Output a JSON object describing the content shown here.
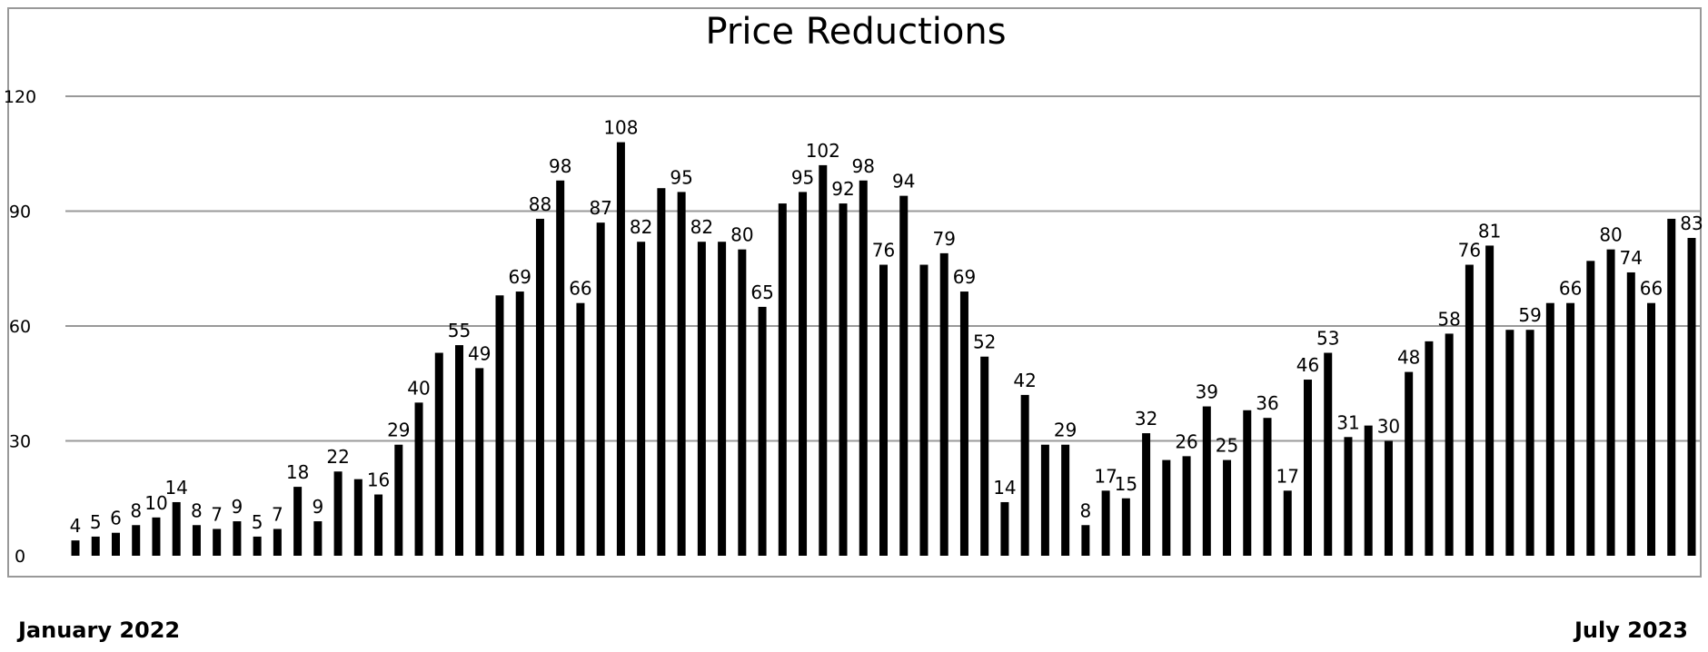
{
  "chart_data": {
    "type": "bar",
    "title": "Price Reductions",
    "xlabel": "",
    "ylabel": "",
    "ylim": [
      0,
      120
    ],
    "yticks": [
      0,
      30,
      60,
      90,
      120
    ],
    "grid": true,
    "legend": "none",
    "bar_color": "#000000",
    "x_range_labels": {
      "start": "January 2022",
      "end": "July 2023"
    },
    "values": [
      4,
      5,
      6,
      8,
      10,
      14,
      8,
      7,
      9,
      5,
      7,
      18,
      9,
      22,
      20,
      16,
      29,
      40,
      53,
      55,
      49,
      68,
      69,
      88,
      98,
      66,
      87,
      108,
      82,
      96,
      95,
      82,
      82,
      80,
      65,
      92,
      95,
      102,
      92,
      98,
      76,
      94,
      76,
      79,
      69,
      52,
      14,
      42,
      29,
      29,
      8,
      17,
      15,
      32,
      25,
      26,
      39,
      25,
      38,
      36,
      17,
      46,
      53,
      31,
      34,
      30,
      48,
      56,
      58,
      76,
      81,
      59,
      59,
      66,
      66,
      77,
      80,
      74,
      66,
      88,
      83
    ],
    "data_labels": [
      "4",
      "5",
      "6",
      "8",
      "10",
      "14",
      "8",
      "7",
      "9",
      "5",
      "7",
      "18",
      "9",
      "22",
      "",
      "16",
      "29",
      "40",
      "",
      "55",
      "49",
      "",
      "69",
      "88",
      "98",
      "66",
      "87",
      "108",
      "82",
      "",
      "95",
      "82",
      "",
      "80",
      "65",
      "",
      "95",
      "102",
      "92",
      "98",
      "76",
      "94",
      "",
      "79",
      "69",
      "52",
      "14",
      "42",
      "",
      "29",
      "8",
      "17",
      "15",
      "32",
      "",
      "26",
      "39",
      "25",
      "",
      "36",
      "17",
      "46",
      "53",
      "31",
      "",
      "30",
      "48",
      "",
      "58",
      "76",
      "81",
      "",
      "59",
      "",
      "66",
      "",
      "80",
      "74",
      "66",
      "",
      "83"
    ]
  }
}
